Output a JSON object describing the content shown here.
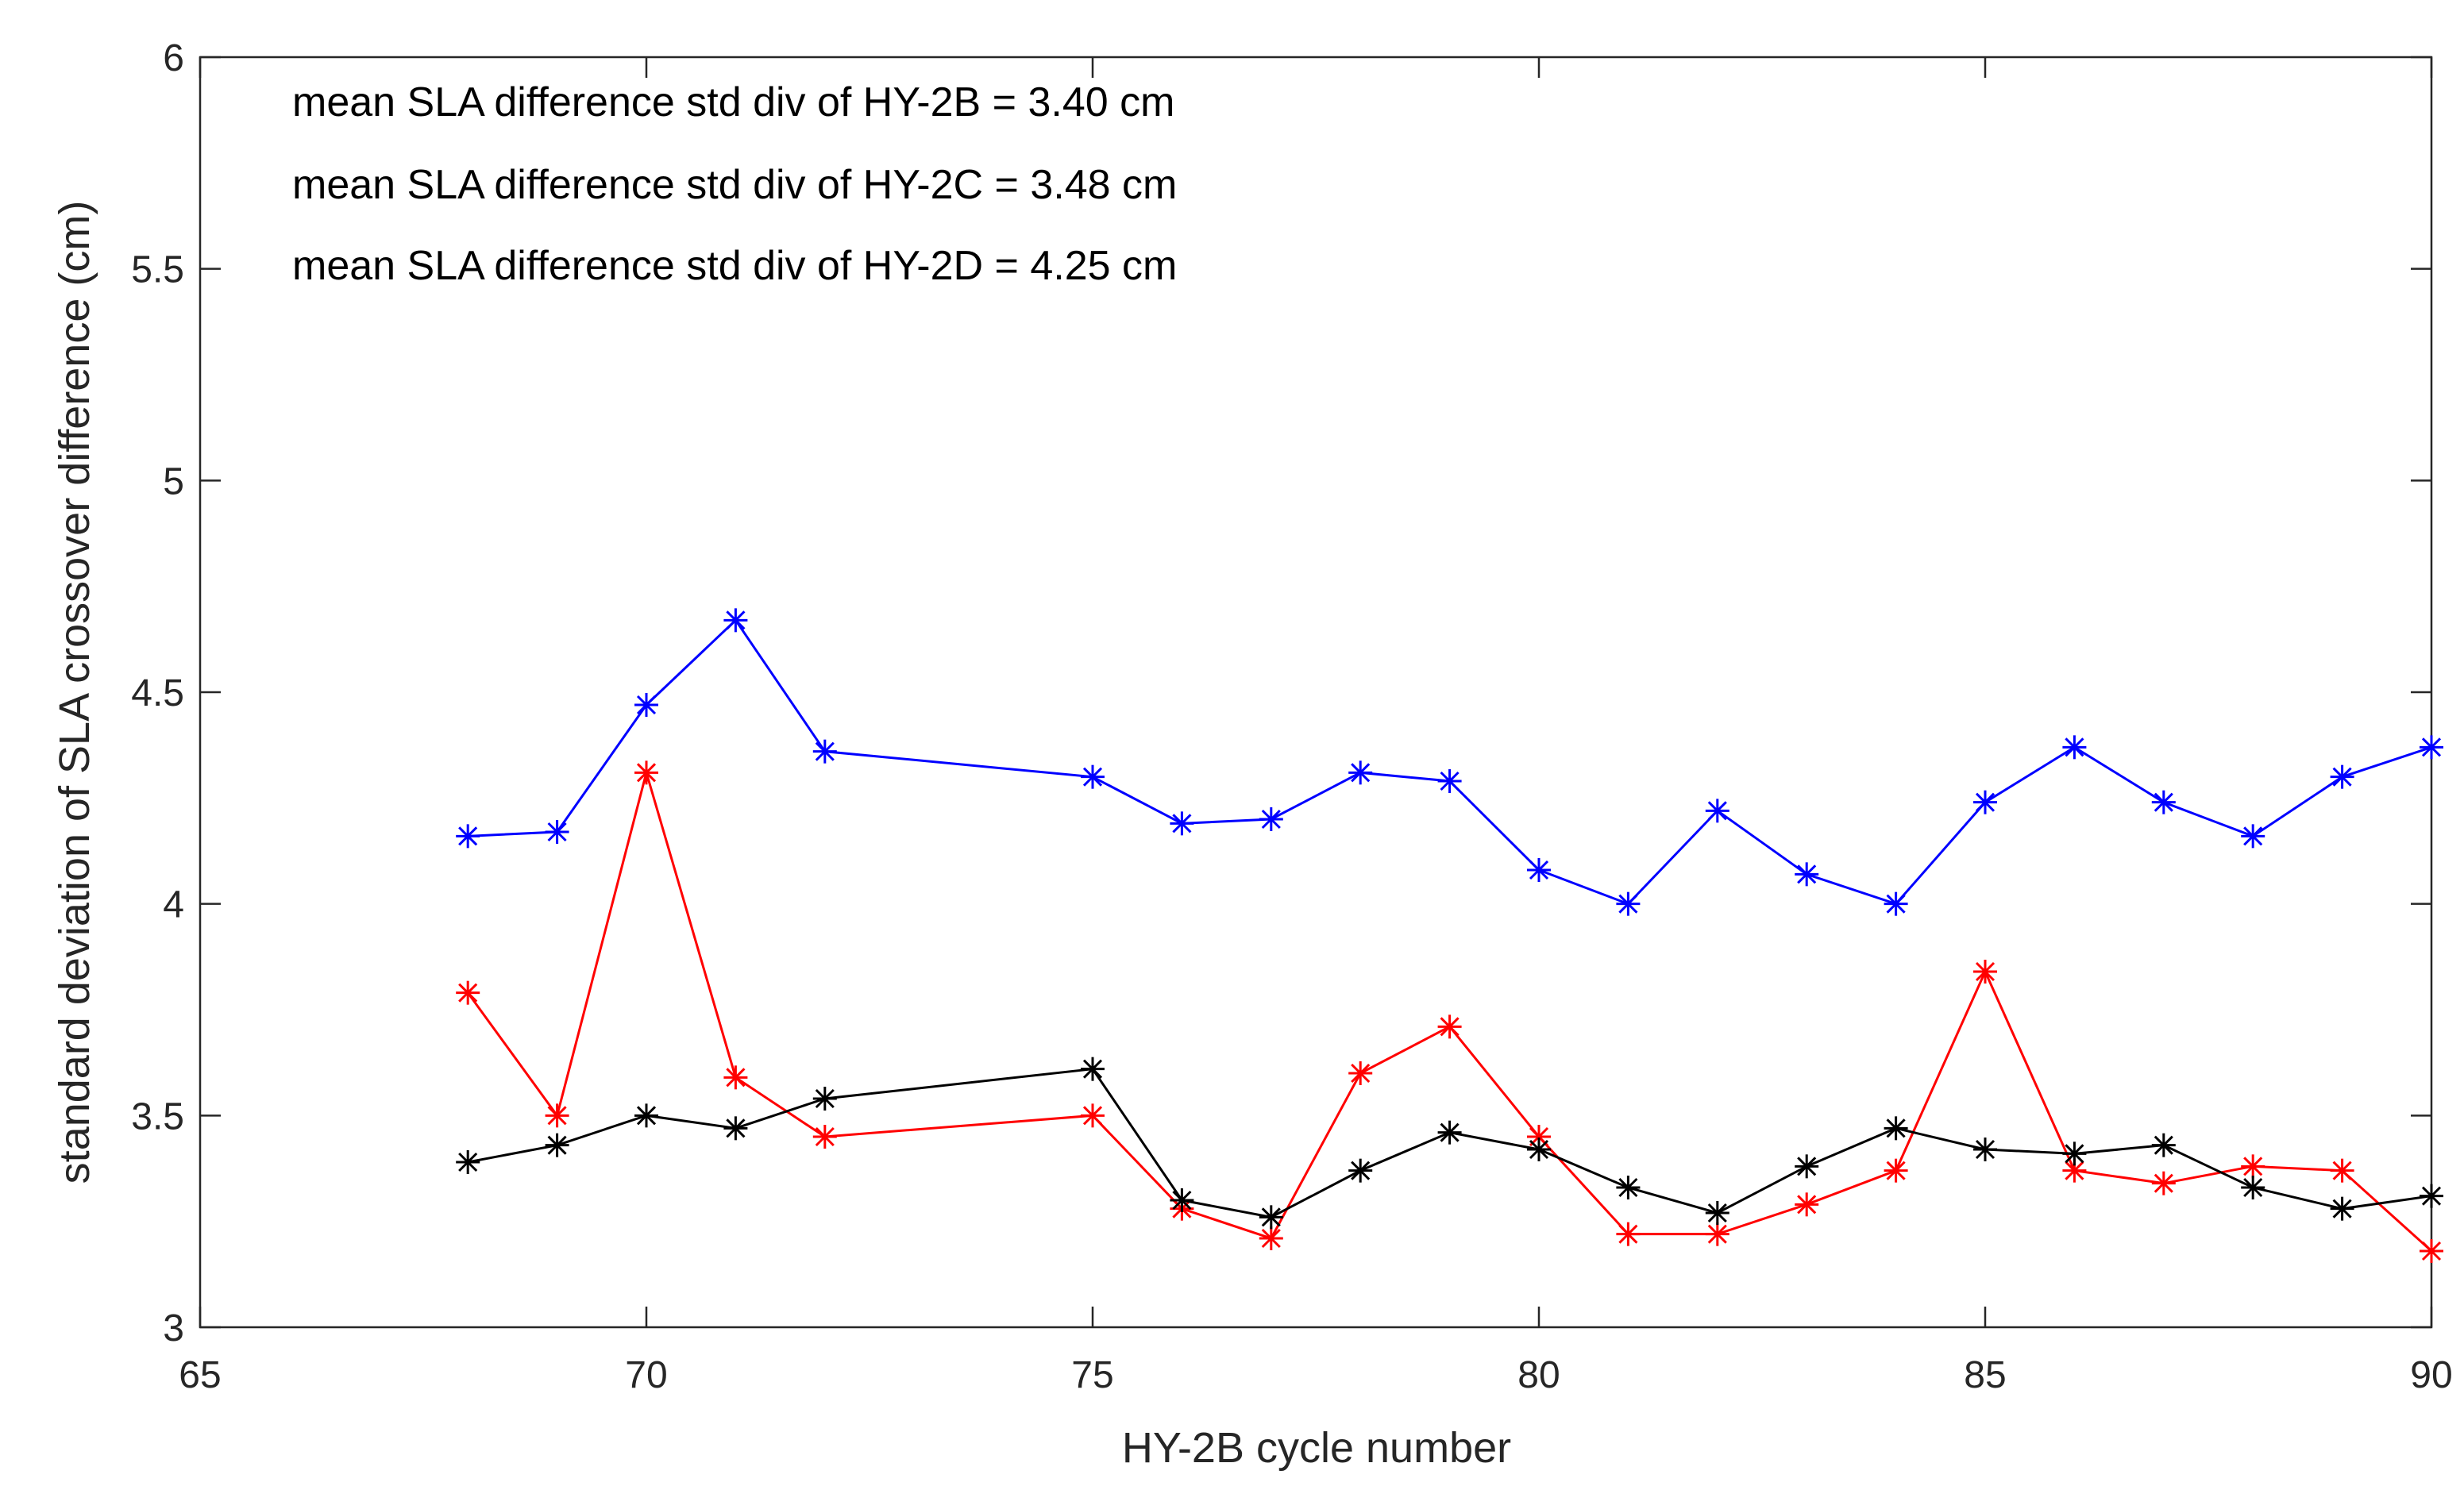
{
  "chart_data": {
    "type": "line",
    "title": "",
    "xlabel": "HY-2B cycle number",
    "ylabel": "standard deviation of SLA crossover difference (cm)",
    "xlim": [
      65,
      90
    ],
    "ylim": [
      3,
      6
    ],
    "xticks": [
      65,
      70,
      75,
      80,
      85,
      90
    ],
    "yticks": [
      3,
      3.5,
      4,
      4.5,
      5,
      5.5,
      6
    ],
    "xtick_labels": [
      "65",
      "70",
      "75",
      "80",
      "85",
      "90"
    ],
    "ytick_labels": [
      "3",
      "3.5",
      "4",
      "4.5",
      "5",
      "5.5",
      "6"
    ],
    "grid": false,
    "marker": "asterisk",
    "x": [
      68,
      69,
      70,
      71,
      72,
      75,
      76,
      77,
      78,
      79,
      80,
      81,
      82,
      83,
      84,
      85,
      86,
      87,
      88,
      89,
      90
    ],
    "series": [
      {
        "name": "blue",
        "color": "#0000ff",
        "values": [
          4.16,
          4.17,
          4.47,
          4.67,
          4.36,
          4.3,
          4.19,
          4.2,
          4.31,
          4.29,
          4.08,
          4.0,
          4.22,
          4.07,
          4.0,
          4.24,
          4.37,
          4.24,
          4.16,
          4.3,
          4.37
        ]
      },
      {
        "name": "red",
        "color": "#ff0000",
        "values": [
          3.79,
          3.5,
          4.31,
          3.59,
          3.45,
          3.5,
          3.28,
          3.21,
          3.6,
          3.71,
          3.45,
          3.22,
          3.22,
          3.29,
          3.37,
          3.84,
          3.37,
          3.34,
          3.38,
          3.37,
          3.18
        ]
      },
      {
        "name": "black",
        "color": "#000000",
        "values": [
          3.39,
          3.43,
          3.5,
          3.47,
          3.54,
          3.61,
          3.3,
          3.26,
          3.37,
          3.46,
          3.42,
          3.33,
          3.27,
          3.38,
          3.47,
          3.42,
          3.41,
          3.43,
          3.33,
          3.28,
          3.31
        ]
      }
    ],
    "annotations": [
      "mean SLA difference std div of HY-2B = 3.40 cm",
      "mean SLA difference std div of HY-2C = 3.48 cm",
      "mean SLA difference std div of HY-2D = 4.25 cm"
    ]
  }
}
